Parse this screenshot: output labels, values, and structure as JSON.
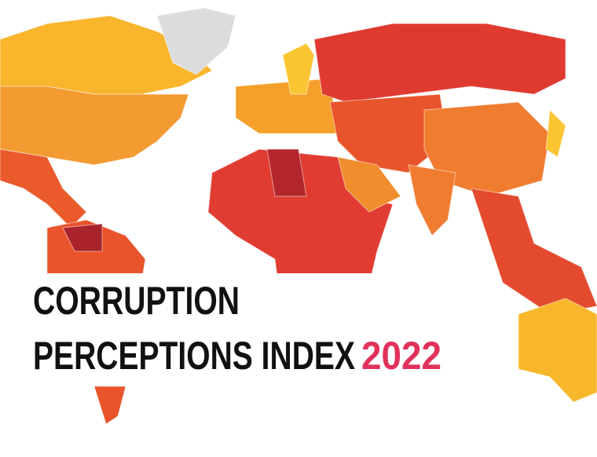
{
  "title": {
    "line1": "CORRUPTION",
    "line2": "PERCEPTIONS INDEX",
    "year": "2022"
  }
}
